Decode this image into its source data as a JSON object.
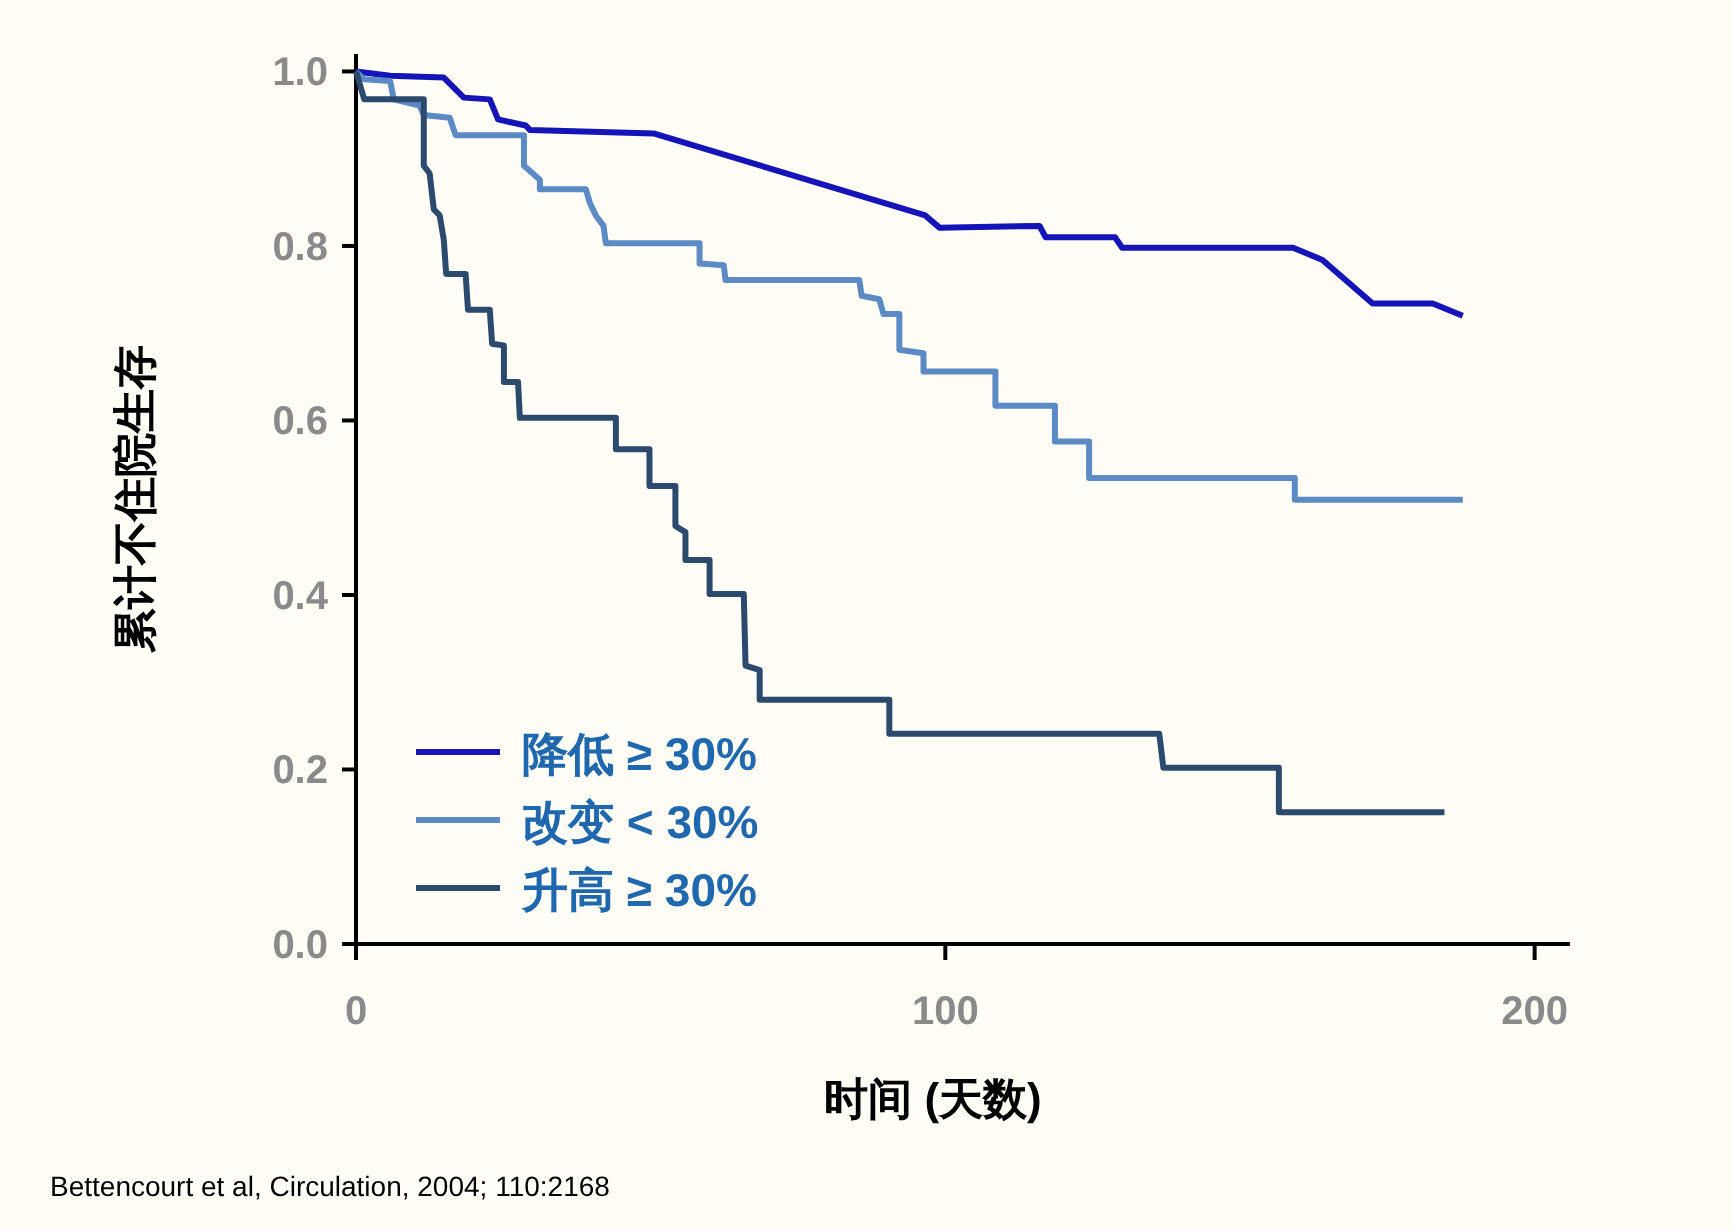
{
  "chart_data": {
    "type": "line",
    "xlabel": "时间 (天数)",
    "ylabel": "累计不住院生存",
    "xlim": [
      0,
      206
    ],
    "ylim": [
      0,
      1.02
    ],
    "xticks": [
      0,
      100,
      200
    ],
    "yticks": [
      {
        "value": 0,
        "label": "0.0"
      },
      {
        "value": 0.2,
        "label": "0.2"
      },
      {
        "value": 0.4,
        "label": "0.4"
      },
      {
        "value": 0.6,
        "label": "0.6"
      },
      {
        "value": 0.8,
        "label": "0.8"
      },
      {
        "value": 1,
        "label": "1.0"
      }
    ],
    "grid": false,
    "legend": "bottom left",
    "line_style": "solid",
    "annotations": [
      "Bettencourt et al, Circulation, 2004; 110:2168"
    ],
    "series": [
      {
        "name": "降低 ≥ 30%",
        "color": "#1414b8",
        "x": [
          0,
          5.8,
          14.9,
          18.3,
          22.7,
          24.1,
          28.8,
          29.5,
          50.5,
          96.6,
          99,
          116,
          117,
          128.8,
          130,
          159,
          164,
          172.5,
          182.7,
          187.8
        ],
        "values": [
          1.0,
          0.995,
          0.993,
          0.97,
          0.968,
          0.945,
          0.938,
          0.933,
          0.929,
          0.835,
          0.821,
          0.823,
          0.81,
          0.81,
          0.798,
          0.798,
          0.784,
          0.734,
          0.734,
          0.72
        ]
      },
      {
        "name": "改变 < 30%",
        "color": "#5b8ac4",
        "x": [
          0,
          1.4,
          5.8,
          6.4,
          10.8,
          11.5,
          15.9,
          16.9,
          28.5,
          28.5,
          31.2,
          31.2,
          39,
          39.7,
          40.7,
          42,
          42.4,
          58.3,
          58.3,
          62.4,
          62.7,
          85.4,
          85.8,
          88.8,
          89.5,
          92.2,
          92.2,
          96.3,
          96.3,
          108.5,
          108.5,
          118.6,
          118.6,
          124.4,
          124.4,
          159.3,
          159.3,
          187.8
        ],
        "values": [
          1.0,
          0.991,
          0.989,
          0.968,
          0.961,
          0.95,
          0.947,
          0.927,
          0.927,
          0.892,
          0.876,
          0.865,
          0.865,
          0.849,
          0.835,
          0.823,
          0.803,
          0.803,
          0.78,
          0.778,
          0.761,
          0.761,
          0.743,
          0.739,
          0.722,
          0.722,
          0.681,
          0.677,
          0.656,
          0.656,
          0.617,
          0.617,
          0.576,
          0.576,
          0.534,
          0.534,
          0.509,
          0.509
        ]
      },
      {
        "name": "升高 ≥ 30%",
        "color": "#2b4a6e",
        "x": [
          0,
          1.4,
          11.5,
          11.5,
          12.5,
          13.2,
          14.2,
          14.9,
          15.3,
          18.6,
          19,
          22.7,
          23.1,
          25.1,
          25.1,
          27.5,
          27.8,
          44.1,
          44.1,
          49.8,
          49.8,
          54.2,
          54.2,
          55.9,
          55.9,
          60,
          60,
          65.8,
          66.1,
          68.5,
          68.5,
          90.5,
          90.5,
          136.3,
          137,
          156.6,
          156.6,
          184.7
        ],
        "values": [
          1.0,
          0.968,
          0.968,
          0.892,
          0.883,
          0.842,
          0.835,
          0.807,
          0.768,
          0.768,
          0.727,
          0.727,
          0.688,
          0.686,
          0.644,
          0.644,
          0.603,
          0.603,
          0.567,
          0.567,
          0.525,
          0.525,
          0.479,
          0.472,
          0.44,
          0.44,
          0.401,
          0.401,
          0.319,
          0.314,
          0.28,
          0.28,
          0.241,
          0.241,
          0.202,
          0.202,
          0.151,
          0.151
        ]
      }
    ]
  }
}
